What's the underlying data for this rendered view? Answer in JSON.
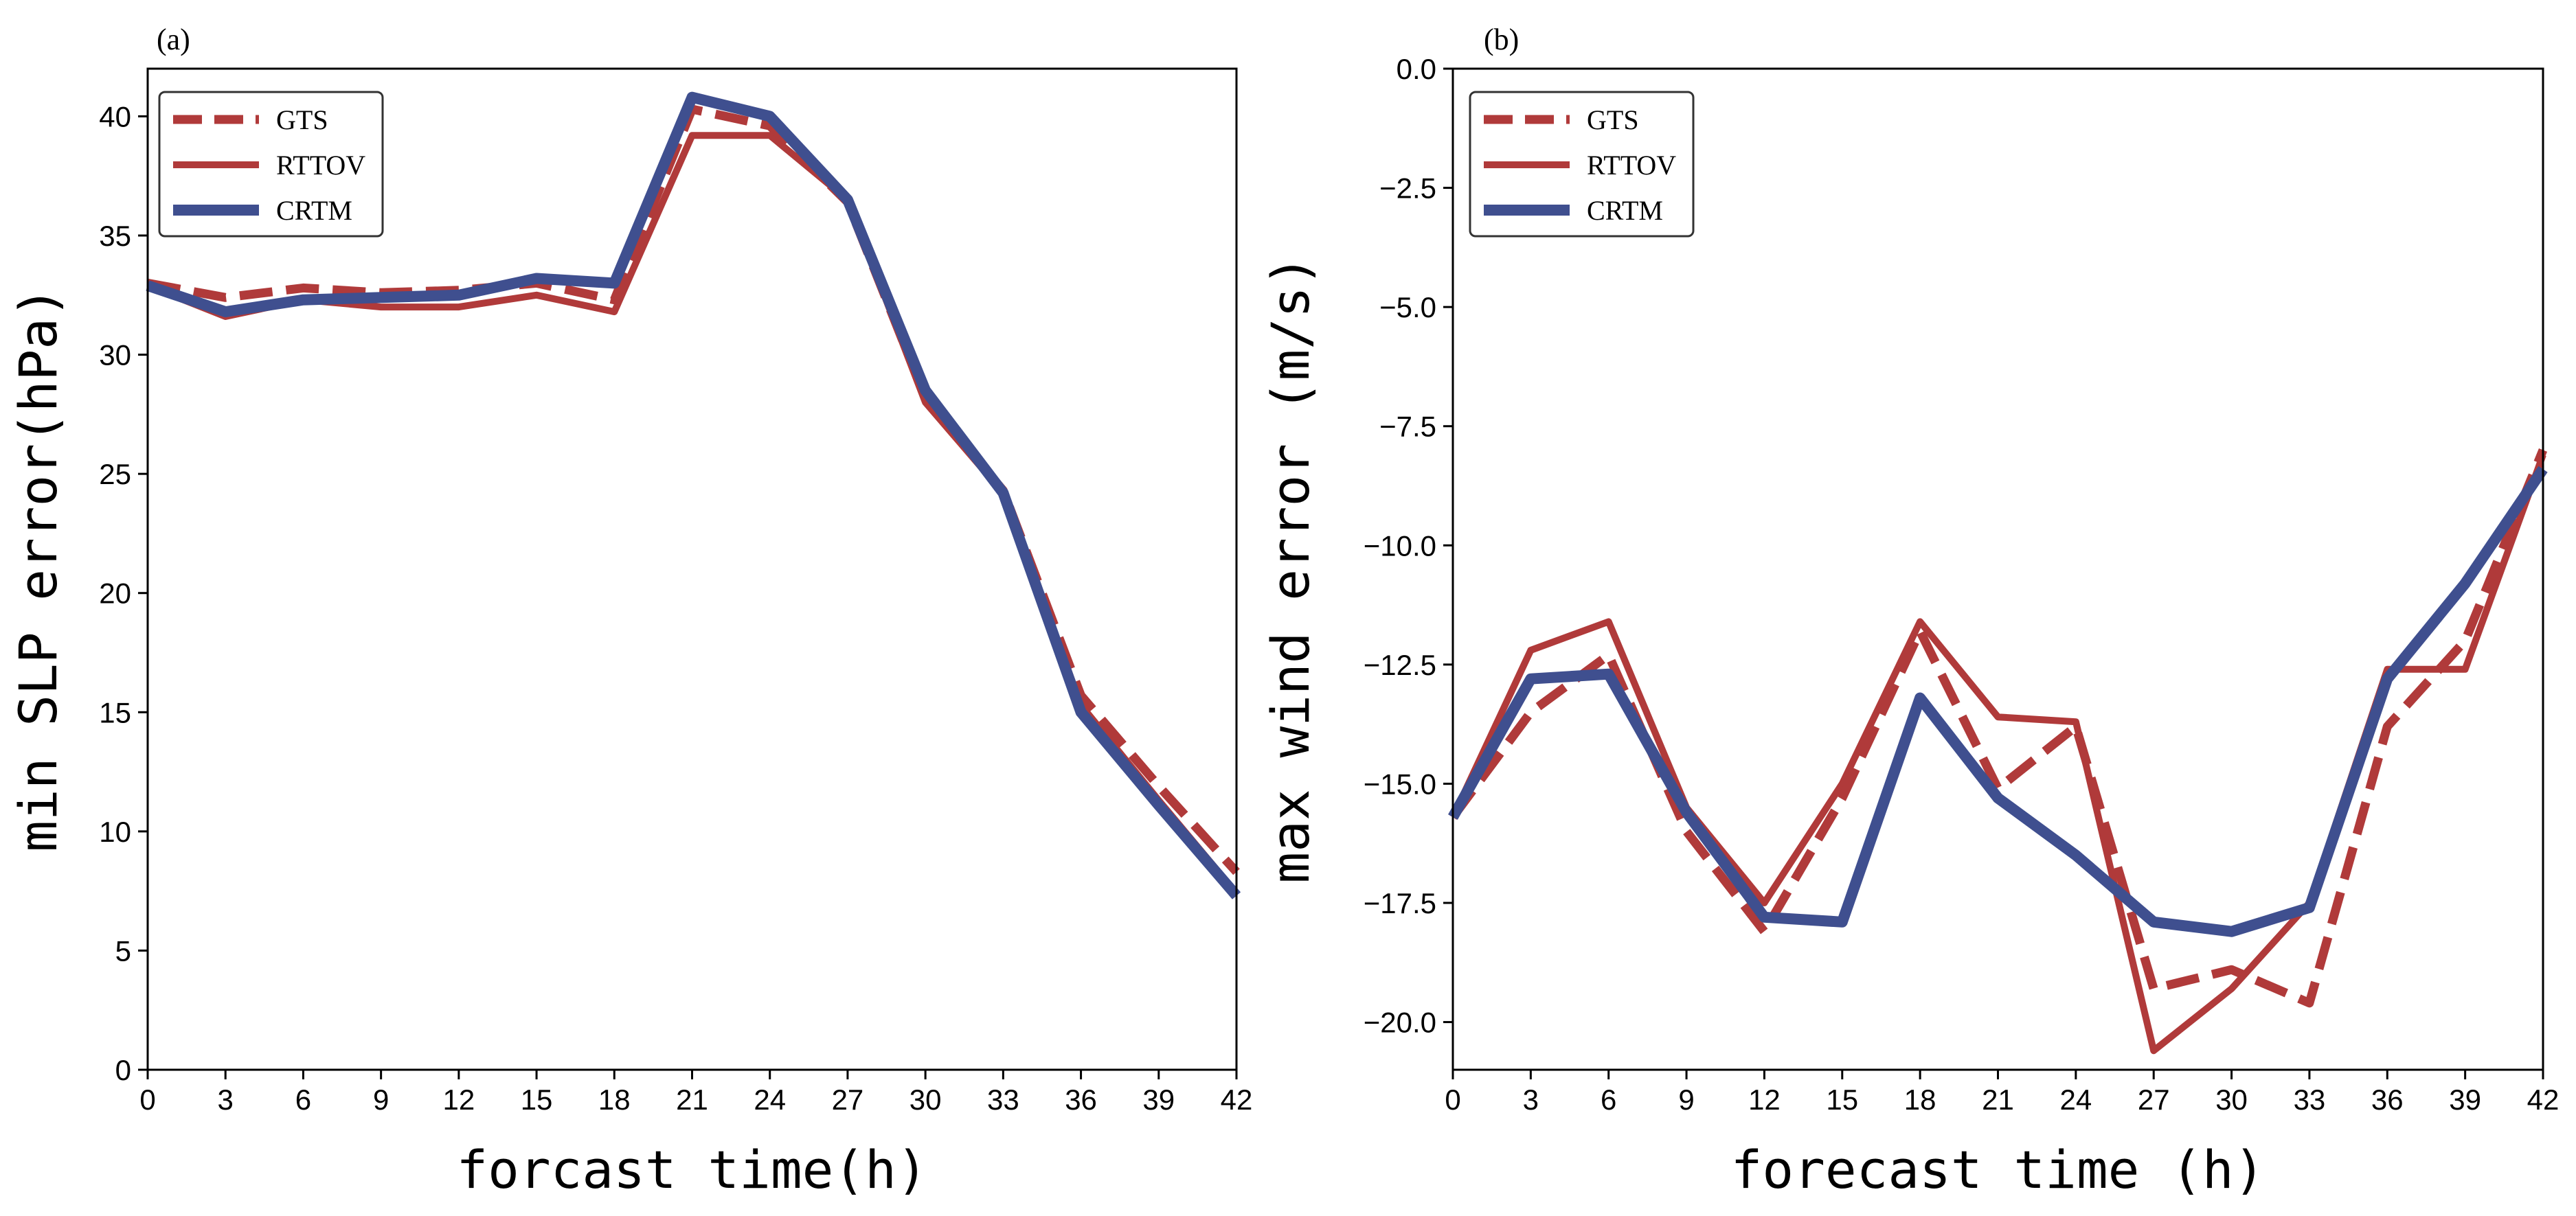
{
  "chart_data": [
    {
      "type": "line",
      "panel_label": "(a)",
      "xlabel": "forcast time(h)",
      "ylabel": "min SLP error(hPa)",
      "xlim": [
        0,
        42
      ],
      "ylim": [
        0,
        42
      ],
      "xticks": [
        0,
        3,
        6,
        9,
        12,
        15,
        18,
        21,
        24,
        27,
        30,
        33,
        36,
        39,
        42
      ],
      "xtick_labels": [
        "0",
        "3",
        "6",
        "9",
        "12",
        "15",
        "18",
        "21",
        "24",
        "27",
        "30",
        "33",
        "36",
        "39",
        "42"
      ],
      "yticks": [
        0,
        5,
        10,
        15,
        20,
        25,
        30,
        35,
        40
      ],
      "ytick_labels": [
        "0",
        "5",
        "10",
        "15",
        "20",
        "25",
        "30",
        "35",
        "40"
      ],
      "grid": false,
      "legend_position": "top-left",
      "x": [
        0,
        3,
        6,
        9,
        12,
        15,
        18,
        21,
        24,
        27,
        30,
        33,
        36,
        39,
        42
      ],
      "series": [
        {
          "name": "GTS",
          "style": "dashed",
          "color": "#b03a3a",
          "values": [
            33.0,
            32.4,
            32.8,
            32.6,
            32.7,
            33.0,
            32.3,
            40.3,
            39.6,
            36.4,
            28.2,
            24.3,
            15.7,
            11.9,
            8.3
          ]
        },
        {
          "name": "RTTOV",
          "style": "solid",
          "color": "#b03a3a",
          "values": [
            32.9,
            31.6,
            32.3,
            32.0,
            32.0,
            32.5,
            31.8,
            39.2,
            39.2,
            36.5,
            28.0,
            24.2,
            15.3,
            11.3,
            7.4
          ]
        },
        {
          "name": "CRTM",
          "style": "solid-thick",
          "color": "#3f4f8f",
          "values": [
            32.9,
            31.8,
            32.3,
            32.4,
            32.5,
            33.2,
            33.0,
            40.8,
            40.0,
            36.5,
            28.5,
            24.2,
            15.0,
            11.1,
            7.3
          ]
        }
      ]
    },
    {
      "type": "line",
      "panel_label": "(b)",
      "xlabel": "forecast time (h)",
      "ylabel": "max wind error (m/s)",
      "xlim": [
        0,
        42
      ],
      "ylim": [
        -21,
        0
      ],
      "xticks": [
        0,
        3,
        6,
        9,
        12,
        15,
        18,
        21,
        24,
        27,
        30,
        33,
        36,
        39,
        42
      ],
      "xtick_labels": [
        "0",
        "3",
        "6",
        "9",
        "12",
        "15",
        "18",
        "21",
        "24",
        "27",
        "30",
        "33",
        "36",
        "39",
        "42"
      ],
      "yticks": [
        0,
        -2.5,
        -5,
        -7.5,
        -10,
        -12.5,
        -15,
        -17.5,
        -20
      ],
      "ytick_labels": [
        "0.0",
        "−2.5",
        "−5.0",
        "−7.5",
        "−10.0",
        "−12.5",
        "−15.0",
        "−17.5",
        "−20.0"
      ],
      "grid": false,
      "legend_position": "top-left",
      "x": [
        0,
        3,
        6,
        9,
        12,
        15,
        18,
        21,
        24,
        27,
        30,
        33,
        36,
        39,
        42
      ],
      "series": [
        {
          "name": "GTS",
          "style": "dashed",
          "color": "#b03a3a",
          "values": [
            -15.7,
            -13.5,
            -12.3,
            -16.0,
            -18.1,
            -15.3,
            -11.8,
            -15.1,
            -13.8,
            -19.3,
            -18.9,
            -19.6,
            -13.8,
            -12.0,
            -8.0
          ]
        },
        {
          "name": "RTTOV",
          "style": "solid",
          "color": "#b03a3a",
          "values": [
            -15.7,
            -12.2,
            -11.6,
            -15.5,
            -17.5,
            -15.0,
            -11.6,
            -13.6,
            -13.7,
            -20.6,
            -19.3,
            -17.5,
            -12.6,
            -12.6,
            -8.1
          ]
        },
        {
          "name": "CRTM",
          "style": "solid-thick",
          "color": "#3f4f8f",
          "values": [
            -15.7,
            -12.8,
            -12.7,
            -15.6,
            -17.8,
            -17.9,
            -13.2,
            -15.3,
            -16.5,
            -17.9,
            -18.1,
            -17.6,
            -12.8,
            -10.8,
            -8.4
          ]
        }
      ]
    }
  ]
}
